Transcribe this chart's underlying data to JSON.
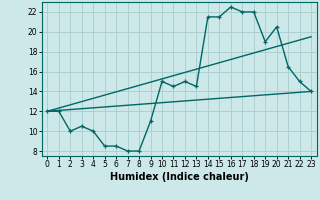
{
  "title": "",
  "xlabel": "Humidex (Indice chaleur)",
  "ylabel": "",
  "bg_color": "#cce8e8",
  "grid_color": "#aacccc",
  "line_color": "#006666",
  "xlim": [
    -0.5,
    23.5
  ],
  "ylim": [
    7.5,
    23.0
  ],
  "x_ticks": [
    0,
    1,
    2,
    3,
    4,
    5,
    6,
    7,
    8,
    9,
    10,
    11,
    12,
    13,
    14,
    15,
    16,
    17,
    18,
    19,
    20,
    21,
    22,
    23
  ],
  "y_ticks": [
    8,
    10,
    12,
    14,
    16,
    18,
    20,
    22
  ],
  "line1_x": [
    0,
    1,
    2,
    3,
    4,
    5,
    6,
    7,
    8,
    9,
    10,
    11,
    12,
    13,
    14,
    15,
    16,
    17,
    18,
    19,
    20,
    21,
    22,
    23
  ],
  "line1_y": [
    12,
    12,
    10,
    10.5,
    10,
    8.5,
    8.5,
    8,
    8,
    11,
    15,
    14.5,
    15,
    14.5,
    21.5,
    21.5,
    22.5,
    22,
    22,
    19,
    20.5,
    16.5,
    15,
    14
  ],
  "line2_x": [
    0,
    23
  ],
  "line2_y": [
    12,
    19.5
  ],
  "line3_x": [
    0,
    23
  ],
  "line3_y": [
    12,
    14
  ],
  "xlabel_fontsize": 7,
  "xlabel_fontweight": "bold",
  "tick_fontsize": 5.5,
  "linewidth": 1.0,
  "marker": "+",
  "markersize": 3.5
}
